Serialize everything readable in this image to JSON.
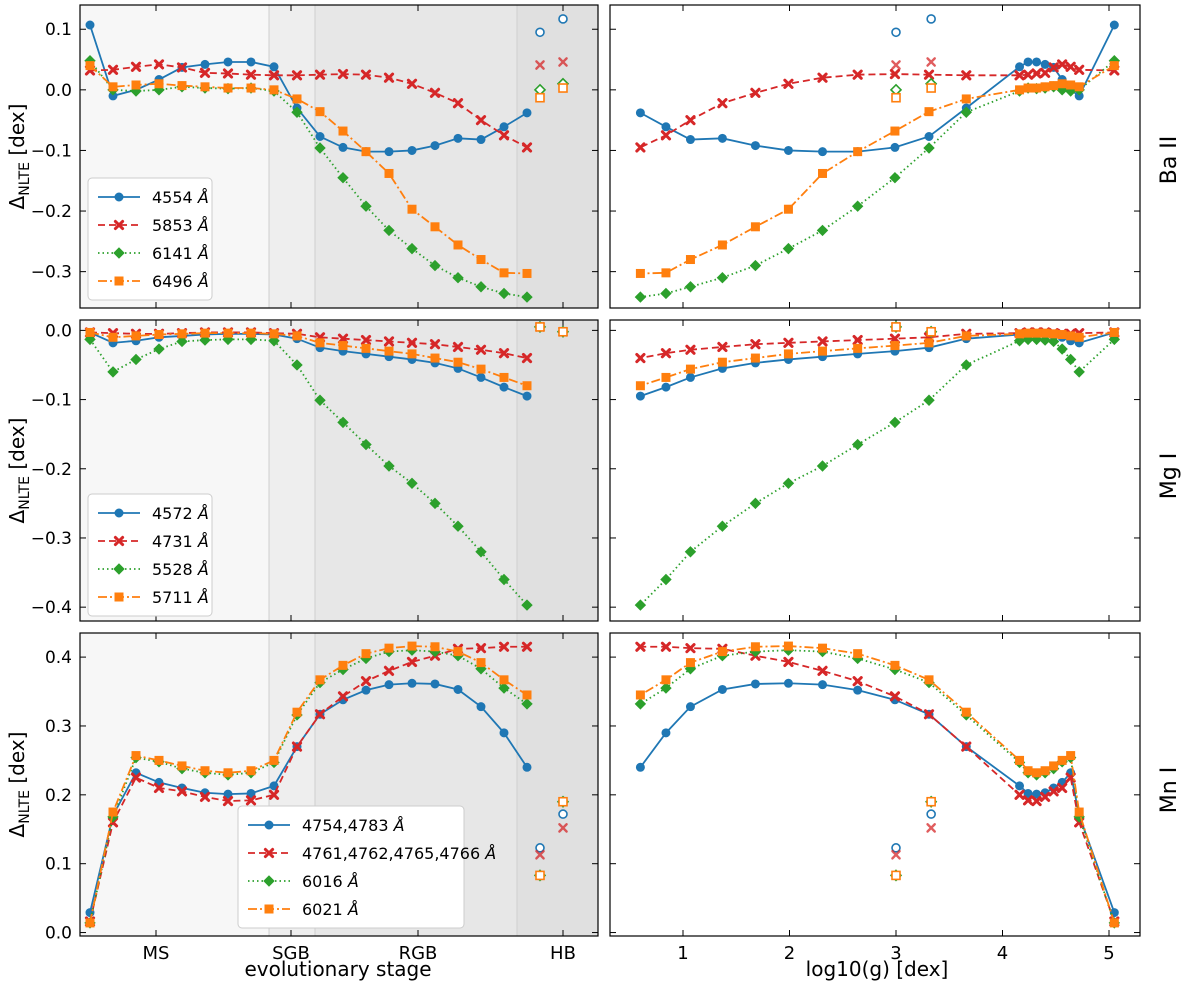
{
  "figure": {
    "left_xlabel": "evolutionary stage",
    "right_xlabel": "log10(g) [dex]",
    "stage_ticks": [
      "MS",
      "SGB",
      "RGB",
      "HB"
    ],
    "logg_ticks": [
      1,
      2,
      3,
      4,
      5
    ],
    "y_axis_label": "ΔNLTE [dex]"
  },
  "chart_data": [
    {
      "type": "line",
      "title": "Ba II",
      "xlabel": "evolutionary stage",
      "ylabel": "ΔNLTE [dex]",
      "ylim": [
        -0.36,
        0.14
      ],
      "yticks": [
        0.1,
        0.0,
        -0.1,
        -0.2,
        -0.3
      ],
      "ytick_labels": [
        "0.1",
        "0.0",
        "−0.1",
        "−0.2",
        "−0.3"
      ],
      "series": [
        {
          "name": "4554 Å",
          "label": "4554",
          "values": [
            0.107,
            -0.01,
            0.0,
            0.017,
            0.037,
            0.042,
            0.046,
            0.046,
            0.038,
            -0.03,
            -0.077,
            -0.095,
            -0.102,
            -0.102,
            -0.1,
            -0.092,
            -0.08,
            -0.082,
            -0.061,
            -0.038
          ],
          "hb": [
            0.095,
            0.117
          ]
        },
        {
          "name": "5853 Å",
          "label": "5853",
          "values": [
            0.032,
            0.033,
            0.038,
            0.042,
            0.037,
            0.028,
            0.027,
            0.025,
            0.024,
            0.024,
            0.025,
            0.026,
            0.025,
            0.02,
            0.01,
            -0.005,
            -0.022,
            -0.05,
            -0.075,
            -0.095
          ],
          "hb": [
            0.041,
            0.046
          ]
        },
        {
          "name": "6141 Å",
          "label": "6141",
          "values": [
            0.048,
            0.0,
            -0.002,
            0.0,
            0.005,
            0.003,
            0.002,
            0.003,
            -0.002,
            -0.037,
            -0.096,
            -0.145,
            -0.192,
            -0.232,
            -0.262,
            -0.29,
            -0.31,
            -0.325,
            -0.336,
            -0.342
          ],
          "hb": [
            0.0,
            0.01
          ]
        },
        {
          "name": "6496 Å",
          "label": "6496",
          "values": [
            0.04,
            0.005,
            0.008,
            0.01,
            0.007,
            0.005,
            0.003,
            0.003,
            0.0,
            -0.015,
            -0.036,
            -0.068,
            -0.102,
            -0.138,
            -0.197,
            -0.226,
            -0.256,
            -0.28,
            -0.302,
            -0.303
          ],
          "hb": [
            -0.013,
            0.003
          ]
        }
      ]
    },
    {
      "type": "line",
      "title": "Mg I",
      "xlabel": "evolutionary stage",
      "ylabel": "ΔNLTE [dex]",
      "ylim": [
        -0.42,
        0.015
      ],
      "yticks": [
        0.0,
        -0.1,
        -0.2,
        -0.3,
        -0.4
      ],
      "ytick_labels": [
        "0.0",
        "−0.1",
        "−0.2",
        "−0.3",
        "−0.4"
      ],
      "series": [
        {
          "name": "4572 Å",
          "label": "4572",
          "values": [
            -0.003,
            -0.018,
            -0.015,
            -0.01,
            -0.008,
            -0.006,
            -0.005,
            -0.005,
            -0.006,
            -0.012,
            -0.025,
            -0.03,
            -0.034,
            -0.038,
            -0.042,
            -0.047,
            -0.055,
            -0.068,
            -0.082,
            -0.095
          ],
          "hb": [
            0.005,
            -0.002
          ]
        },
        {
          "name": "4731 Å",
          "label": "4731",
          "values": [
            -0.003,
            -0.004,
            -0.005,
            -0.005,
            -0.004,
            -0.003,
            -0.003,
            -0.003,
            -0.004,
            -0.005,
            -0.01,
            -0.012,
            -0.014,
            -0.016,
            -0.018,
            -0.02,
            -0.024,
            -0.028,
            -0.033,
            -0.04
          ],
          "hb": [
            0.005,
            -0.002
          ]
        },
        {
          "name": "5528 Å",
          "label": "5528",
          "values": [
            -0.013,
            -0.06,
            -0.042,
            -0.027,
            -0.016,
            -0.014,
            -0.013,
            -0.013,
            -0.015,
            -0.05,
            -0.101,
            -0.133,
            -0.165,
            -0.196,
            -0.221,
            -0.25,
            -0.283,
            -0.32,
            -0.36,
            -0.397
          ],
          "hb": [
            0.005,
            -0.002
          ]
        },
        {
          "name": "5711 Å",
          "label": "5711",
          "values": [
            -0.003,
            -0.01,
            -0.008,
            -0.006,
            -0.005,
            -0.004,
            -0.004,
            -0.004,
            -0.005,
            -0.008,
            -0.018,
            -0.022,
            -0.026,
            -0.03,
            -0.034,
            -0.04,
            -0.046,
            -0.056,
            -0.068,
            -0.08
          ],
          "hb": [
            0.005,
            -0.002
          ]
        }
      ]
    },
    {
      "type": "line",
      "title": "Mn I",
      "xlabel": "evolutionary stage",
      "ylabel": "ΔNLTE [dex]",
      "ylim": [
        -0.005,
        0.435
      ],
      "yticks": [
        0.0,
        0.1,
        0.2,
        0.3,
        0.4
      ],
      "ytick_labels": [
        "0.0",
        "0.1",
        "0.2",
        "0.3",
        "0.4"
      ],
      "series": [
        {
          "name": "4754,4783 Å",
          "label": "4754,4783",
          "values": [
            0.029,
            0.17,
            0.232,
            0.218,
            0.21,
            0.203,
            0.201,
            0.202,
            0.213,
            0.27,
            0.317,
            0.338,
            0.352,
            0.36,
            0.362,
            0.361,
            0.353,
            0.328,
            0.29,
            0.24
          ],
          "hb": [
            0.123,
            0.172
          ]
        },
        {
          "name": "4761,4762,4765,4766 Å",
          "label": "4761,4762,4765,4766",
          "values": [
            0.016,
            0.16,
            0.225,
            0.21,
            0.205,
            0.197,
            0.191,
            0.192,
            0.2,
            0.27,
            0.317,
            0.343,
            0.365,
            0.38,
            0.393,
            0.402,
            0.412,
            0.413,
            0.415,
            0.415
          ],
          "hb": [
            0.113,
            0.152
          ]
        },
        {
          "name": "6016 Å",
          "label": "6016",
          "values": [
            0.014,
            0.168,
            0.254,
            0.248,
            0.238,
            0.232,
            0.229,
            0.232,
            0.247,
            0.316,
            0.363,
            0.382,
            0.398,
            0.408,
            0.41,
            0.408,
            0.402,
            0.383,
            0.355,
            0.332
          ],
          "hb": [
            0.083,
            0.19
          ]
        },
        {
          "name": "6021 Å",
          "label": "6021",
          "values": [
            0.014,
            0.175,
            0.257,
            0.25,
            0.242,
            0.235,
            0.232,
            0.235,
            0.25,
            0.32,
            0.367,
            0.388,
            0.405,
            0.413,
            0.416,
            0.415,
            0.408,
            0.392,
            0.367,
            0.345
          ],
          "hb": [
            0.083,
            0.19
          ]
        }
      ]
    }
  ],
  "logg_grid": [
    5.05,
    4.72,
    4.64,
    4.56,
    4.48,
    4.4,
    4.32,
    4.24,
    4.16,
    3.66,
    3.31,
    2.99,
    2.64,
    2.31,
    1.99,
    1.68,
    1.37,
    1.07,
    0.84,
    0.6
  ],
  "logg_hb": [
    3.0,
    3.33
  ],
  "style": {
    "colors": [
      "#1f77b4",
      "#d62728",
      "#2ca02c",
      "#ff7f0e"
    ],
    "markers": [
      "circle",
      "x",
      "diamond",
      "square"
    ],
    "dashes": [
      "",
      "7,4",
      "1.5,3",
      "9,3,2,3"
    ],
    "band_colors": [
      "#f7f7f7",
      "#eeeeee",
      "#e7e7e7",
      "#e0e0e0"
    ]
  }
}
